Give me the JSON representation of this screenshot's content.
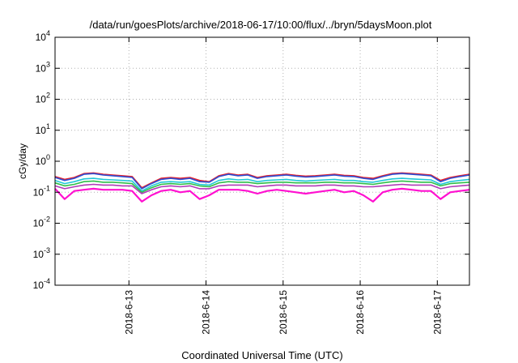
{
  "chart_data": {
    "type": "line",
    "title": "/data/run/goesPlots/archive/2018-06-17/10:00/flux/../bryn/5daysMoon.plot",
    "xlabel": "Coordinated Universal Time (UTC)",
    "ylabel": "cGy/day",
    "yscale": "log",
    "ylim": [
      0.0001,
      10000
    ],
    "yticks": [
      {
        "value": 0.0001,
        "base": "10",
        "exp": "-4"
      },
      {
        "value": 0.001,
        "base": "10",
        "exp": "-3"
      },
      {
        "value": 0.01,
        "base": "10",
        "exp": "-2"
      },
      {
        "value": 0.1,
        "base": "10",
        "exp": "-1"
      },
      {
        "value": 1,
        "base": "10",
        "exp": "0"
      },
      {
        "value": 10,
        "base": "10",
        "exp": "1"
      },
      {
        "value": 100,
        "base": "10",
        "exp": "2"
      },
      {
        "value": 1000,
        "base": "10",
        "exp": "3"
      },
      {
        "value": 10000,
        "base": "10",
        "exp": "4"
      }
    ],
    "xlim": [
      "2018-06-12T01:00",
      "2018-06-17T10:00"
    ],
    "xticks": [
      {
        "date": "2018-06-13T00:00",
        "label": "2018-6-13"
      },
      {
        "date": "2018-06-14T00:00",
        "label": "2018-6-14"
      },
      {
        "date": "2018-06-15T00:00",
        "label": "2018-6-15"
      },
      {
        "date": "2018-06-16T00:00",
        "label": "2018-6-16"
      },
      {
        "date": "2018-06-17T00:00",
        "label": "2018-6-17"
      }
    ],
    "grid": true,
    "legend": "none",
    "x": [
      "2018-06-12T01:00",
      "2018-06-12T04:00",
      "2018-06-12T07:00",
      "2018-06-12T10:00",
      "2018-06-12T13:00",
      "2018-06-12T16:00",
      "2018-06-12T19:00",
      "2018-06-12T22:00",
      "2018-06-13T01:00",
      "2018-06-13T04:00",
      "2018-06-13T07:00",
      "2018-06-13T10:00",
      "2018-06-13T13:00",
      "2018-06-13T16:00",
      "2018-06-13T19:00",
      "2018-06-13T22:00",
      "2018-06-14T01:00",
      "2018-06-14T04:00",
      "2018-06-14T07:00",
      "2018-06-14T10:00",
      "2018-06-14T13:00",
      "2018-06-14T16:00",
      "2018-06-14T19:00",
      "2018-06-14T22:00",
      "2018-06-15T01:00",
      "2018-06-15T04:00",
      "2018-06-15T07:00",
      "2018-06-15T10:00",
      "2018-06-15T13:00",
      "2018-06-15T16:00",
      "2018-06-15T19:00",
      "2018-06-15T22:00",
      "2018-06-16T01:00",
      "2018-06-16T04:00",
      "2018-06-16T07:00",
      "2018-06-16T10:00",
      "2018-06-16T13:00",
      "2018-06-16T16:00",
      "2018-06-16T19:00",
      "2018-06-16T22:00",
      "2018-06-17T01:00",
      "2018-06-17T04:00",
      "2018-06-17T07:00",
      "2018-06-17T10:00"
    ],
    "series": [
      {
        "color": "#e8202a",
        "values": [
          0.32,
          0.26,
          0.3,
          0.4,
          0.42,
          0.38,
          0.36,
          0.34,
          0.32,
          0.14,
          0.2,
          0.28,
          0.3,
          0.28,
          0.3,
          0.24,
          0.22,
          0.34,
          0.4,
          0.36,
          0.38,
          0.3,
          0.34,
          0.36,
          0.38,
          0.35,
          0.33,
          0.34,
          0.36,
          0.38,
          0.35,
          0.34,
          0.3,
          0.28,
          0.34,
          0.4,
          0.42,
          0.4,
          0.38,
          0.36,
          0.24,
          0.3,
          0.34,
          0.38
        ]
      },
      {
        "color": "#2a4fd6",
        "values": [
          0.3,
          0.24,
          0.28,
          0.38,
          0.4,
          0.36,
          0.34,
          0.32,
          0.3,
          0.13,
          0.19,
          0.26,
          0.28,
          0.26,
          0.28,
          0.22,
          0.21,
          0.32,
          0.38,
          0.34,
          0.36,
          0.28,
          0.32,
          0.34,
          0.36,
          0.33,
          0.31,
          0.32,
          0.34,
          0.36,
          0.33,
          0.32,
          0.28,
          0.26,
          0.32,
          0.38,
          0.4,
          0.38,
          0.36,
          0.34,
          0.22,
          0.28,
          0.32,
          0.36
        ]
      },
      {
        "color": "#22c8d8",
        "values": [
          0.24,
          0.19,
          0.22,
          0.27,
          0.28,
          0.26,
          0.25,
          0.24,
          0.23,
          0.11,
          0.16,
          0.21,
          0.22,
          0.21,
          0.22,
          0.18,
          0.17,
          0.24,
          0.27,
          0.25,
          0.26,
          0.22,
          0.24,
          0.25,
          0.26,
          0.24,
          0.23,
          0.24,
          0.25,
          0.26,
          0.24,
          0.24,
          0.22,
          0.21,
          0.24,
          0.27,
          0.28,
          0.27,
          0.26,
          0.25,
          0.18,
          0.22,
          0.24,
          0.26
        ]
      },
      {
        "color": "#2fbf4a",
        "values": [
          0.2,
          0.16,
          0.18,
          0.22,
          0.23,
          0.21,
          0.21,
          0.2,
          0.19,
          0.1,
          0.14,
          0.18,
          0.19,
          0.18,
          0.19,
          0.16,
          0.15,
          0.2,
          0.22,
          0.21,
          0.21,
          0.19,
          0.2,
          0.21,
          0.21,
          0.2,
          0.2,
          0.2,
          0.21,
          0.21,
          0.2,
          0.2,
          0.19,
          0.18,
          0.2,
          0.22,
          0.23,
          0.22,
          0.21,
          0.21,
          0.16,
          0.19,
          0.2,
          0.21
        ]
      },
      {
        "color": "#b03ab8",
        "values": [
          0.16,
          0.13,
          0.15,
          0.17,
          0.18,
          0.17,
          0.17,
          0.16,
          0.16,
          0.09,
          0.12,
          0.15,
          0.16,
          0.15,
          0.16,
          0.13,
          0.13,
          0.16,
          0.17,
          0.17,
          0.17,
          0.15,
          0.16,
          0.17,
          0.17,
          0.16,
          0.16,
          0.16,
          0.17,
          0.17,
          0.16,
          0.16,
          0.15,
          0.15,
          0.16,
          0.17,
          0.18,
          0.17,
          0.17,
          0.17,
          0.13,
          0.15,
          0.16,
          0.17
        ]
      },
      {
        "color": "#ff10d0",
        "values": [
          0.13,
          0.06,
          0.11,
          0.12,
          0.13,
          0.12,
          0.12,
          0.12,
          0.11,
          0.05,
          0.08,
          0.11,
          0.12,
          0.1,
          0.11,
          0.06,
          0.08,
          0.12,
          0.12,
          0.12,
          0.11,
          0.09,
          0.11,
          0.12,
          0.11,
          0.1,
          0.09,
          0.1,
          0.11,
          0.12,
          0.1,
          0.11,
          0.08,
          0.05,
          0.1,
          0.12,
          0.13,
          0.12,
          0.11,
          0.11,
          0.06,
          0.1,
          0.11,
          0.12
        ]
      }
    ]
  }
}
